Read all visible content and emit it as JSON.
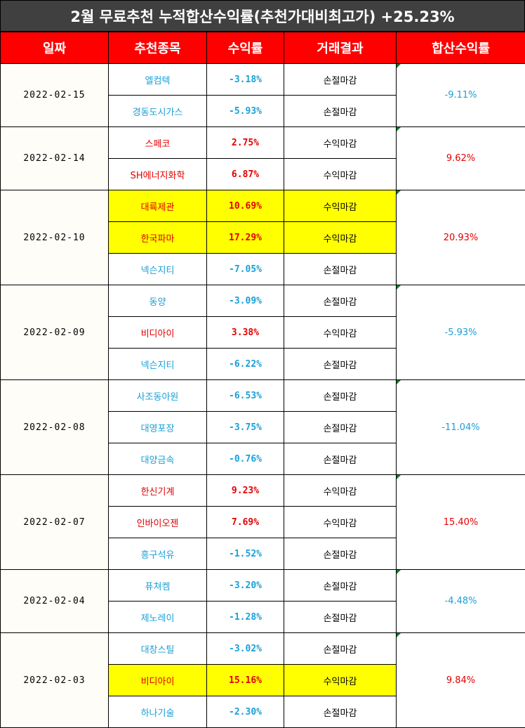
{
  "title": "2월 무료추천 누적합산수익률(추천가대비최고가) +25.23%",
  "headers": [
    "일짜",
    "추천종목",
    "수익률",
    "거래결과",
    "합산수익률"
  ],
  "groups": [
    {
      "date": "2022-02-15",
      "total": "-9.11%",
      "total_type": "loss",
      "rows": [
        {
          "stock": "엘컴텍",
          "rate": "-3.18%",
          "result": "손절마감",
          "type": "loss",
          "highlight": false
        },
        {
          "stock": "경동도시가스",
          "rate": "-5.93%",
          "result": "손절마감",
          "type": "loss",
          "highlight": false
        }
      ]
    },
    {
      "date": "2022-02-14",
      "total": "9.62%",
      "total_type": "gain",
      "rows": [
        {
          "stock": "스페코",
          "rate": "2.75%",
          "result": "수익마감",
          "type": "gain",
          "highlight": false
        },
        {
          "stock": "SH에너지화학",
          "rate": "6.87%",
          "result": "수익마감",
          "type": "gain",
          "highlight": false
        }
      ]
    },
    {
      "date": "2022-02-10",
      "total": "20.93%",
      "total_type": "gain",
      "rows": [
        {
          "stock": "대륙제관",
          "rate": "10.69%",
          "result": "수익마감",
          "type": "gain",
          "highlight": true
        },
        {
          "stock": "한국파마",
          "rate": "17.29%",
          "result": "수익마감",
          "type": "gain",
          "highlight": true
        },
        {
          "stock": "넥슨지티",
          "rate": "-7.05%",
          "result": "손절마감",
          "type": "loss",
          "highlight": false
        }
      ]
    },
    {
      "date": "2022-02-09",
      "total": "-5.93%",
      "total_type": "loss",
      "rows": [
        {
          "stock": "동양",
          "rate": "-3.09%",
          "result": "손절마감",
          "type": "loss",
          "highlight": false
        },
        {
          "stock": "비디아이",
          "rate": "3.38%",
          "result": "수익마감",
          "type": "gain",
          "highlight": false
        },
        {
          "stock": "넥슨지티",
          "rate": "-6.22%",
          "result": "손절마감",
          "type": "loss",
          "highlight": false
        }
      ]
    },
    {
      "date": "2022-02-08",
      "total": "-11.04%",
      "total_type": "loss",
      "rows": [
        {
          "stock": "사조동아원",
          "rate": "-6.53%",
          "result": "손절마감",
          "type": "loss",
          "highlight": false
        },
        {
          "stock": "대영포장",
          "rate": "-3.75%",
          "result": "손절마감",
          "type": "loss",
          "highlight": false
        },
        {
          "stock": "대양금속",
          "rate": "-0.76%",
          "result": "손절마감",
          "type": "loss",
          "highlight": false
        }
      ]
    },
    {
      "date": "2022-02-07",
      "total": "15.40%",
      "total_type": "gain",
      "rows": [
        {
          "stock": "한신기계",
          "rate": "9.23%",
          "result": "수익마감",
          "type": "gain",
          "highlight": false
        },
        {
          "stock": "인바이오젠",
          "rate": "7.69%",
          "result": "수익마감",
          "type": "gain",
          "highlight": false
        },
        {
          "stock": "흥구석유",
          "rate": "-1.52%",
          "result": "손절마감",
          "type": "loss",
          "highlight": false
        }
      ]
    },
    {
      "date": "2022-02-04",
      "total": "-4.48%",
      "total_type": "loss",
      "rows": [
        {
          "stock": "퓨쳐켐",
          "rate": "-3.20%",
          "result": "손절마감",
          "type": "loss",
          "highlight": false
        },
        {
          "stock": "제노레이",
          "rate": "-1.28%",
          "result": "손절마감",
          "type": "loss",
          "highlight": false
        }
      ]
    },
    {
      "date": "2022-02-03",
      "total": "9.84%",
      "total_type": "gain",
      "rows": [
        {
          "stock": "대창스틸",
          "rate": "-3.02%",
          "result": "손절마감",
          "type": "loss",
          "highlight": false
        },
        {
          "stock": "비디아이",
          "rate": "15.16%",
          "result": "수익마감",
          "type": "gain",
          "highlight": true
        },
        {
          "stock": "하나기술",
          "rate": "-2.30%",
          "result": "손절마감",
          "type": "loss",
          "highlight": false
        }
      ]
    }
  ]
}
